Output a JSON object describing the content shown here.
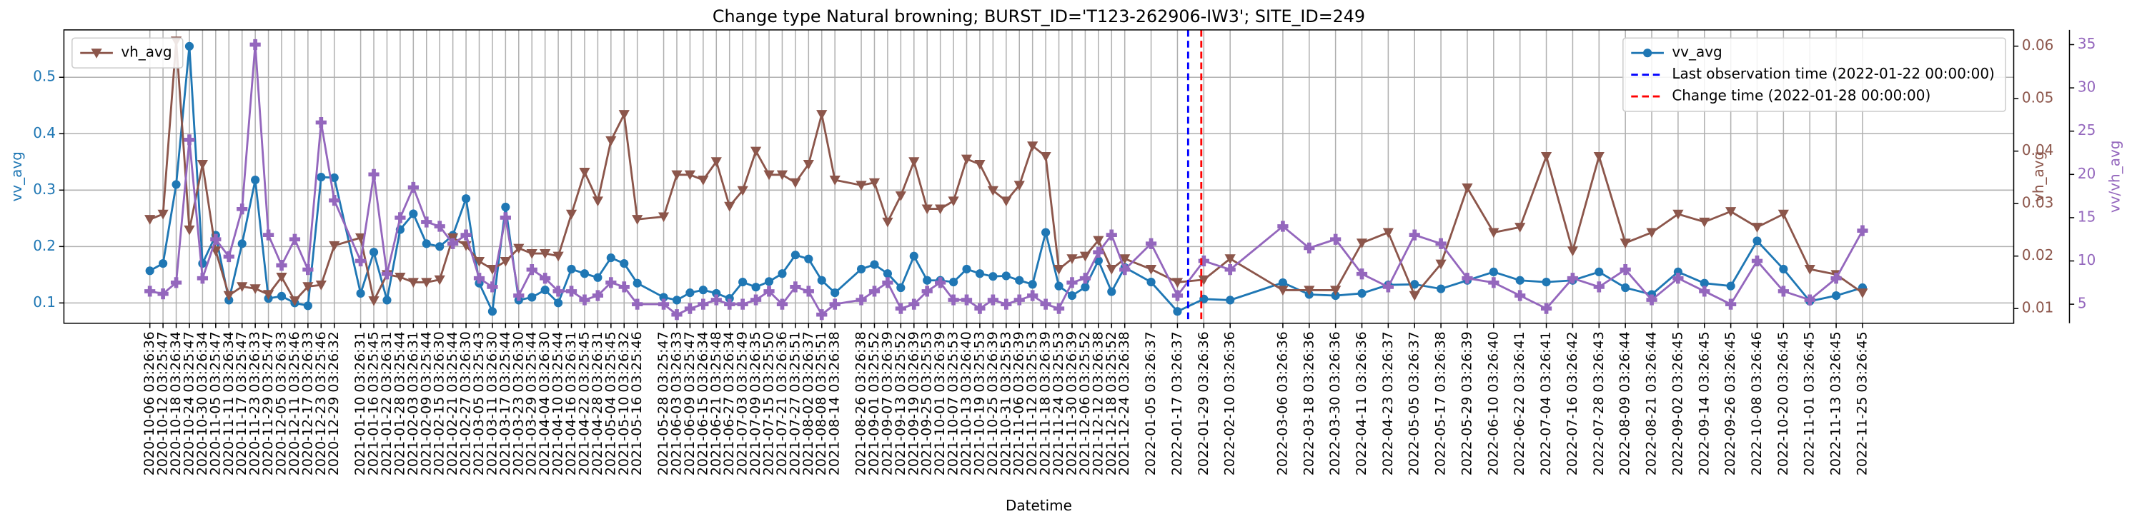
{
  "chart_data": {
    "type": "line",
    "title": "Change type Natural browning; BURST_ID='T123-262906-IW3'; SITE_ID=249",
    "xlabel": "Datetime",
    "ylabel": "vv_avg",
    "y2label": "vh_avg",
    "y3label": "vv/vh_avg",
    "x": [
      "2020-10-06 03:26:36",
      "2020-10-12 03:25:47",
      "2020-10-18 03:26:34",
      "2020-10-24 03:25:47",
      "2020-10-30 03:26:34",
      "2020-11-05 03:25:47",
      "2020-11-11 03:26:34",
      "2020-11-17 03:25:47",
      "2020-11-23 03:26:33",
      "2020-11-29 03:25:47",
      "2020-12-05 03:26:33",
      "2020-12-11 03:25:46",
      "2020-12-17 03:26:33",
      "2020-12-23 03:25:46",
      "2020-12-29 03:26:32",
      "2021-01-10 03:26:31",
      "2021-01-16 03:25:45",
      "2021-01-22 03:26:31",
      "2021-01-28 03:25:44",
      "2021-02-03 03:26:31",
      "2021-02-09 03:25:44",
      "2021-02-15 03:26:30",
      "2021-02-21 03:25:44",
      "2021-02-27 03:26:30",
      "2021-03-05 03:25:43",
      "2021-03-11 03:26:30",
      "2021-03-17 03:25:44",
      "2021-03-23 03:26:30",
      "2021-03-29 03:25:44",
      "2021-04-04 03:26:30",
      "2021-04-10 03:25:44",
      "2021-04-16 03:26:31",
      "2021-04-22 03:25:45",
      "2021-04-28 03:26:31",
      "2021-05-04 03:25:45",
      "2021-05-10 03:26:32",
      "2021-05-16 03:25:46",
      "2021-05-28 03:25:47",
      "2021-06-03 03:26:33",
      "2021-06-09 03:25:47",
      "2021-06-15 03:26:34",
      "2021-06-21 03:25:48",
      "2021-06-27 03:26:34",
      "2021-07-03 03:25:49",
      "2021-07-09 03:26:35",
      "2021-07-15 03:25:50",
      "2021-07-21 03:26:36",
      "2021-07-27 03:25:51",
      "2021-08-02 03:26:37",
      "2021-08-08 03:25:51",
      "2021-08-14 03:26:38",
      "2021-08-26 03:26:38",
      "2021-09-01 03:25:52",
      "2021-09-07 03:26:39",
      "2021-09-13 03:25:52",
      "2021-09-19 03:26:39",
      "2021-09-25 03:25:53",
      "2021-10-01 03:26:39",
      "2021-10-07 03:25:53",
      "2021-10-13 03:26:40",
      "2021-10-19 03:25:53",
      "2021-10-25 03:26:39",
      "2021-10-31 03:25:53",
      "2021-11-06 03:26:39",
      "2021-11-12 03:25:53",
      "2021-11-18 03:26:39",
      "2021-11-24 03:25:53",
      "2021-11-30 03:26:39",
      "2021-12-06 03:25:52",
      "2021-12-12 03:26:38",
      "2021-12-18 03:25:52",
      "2021-12-24 03:26:38",
      "2022-01-05 03:26:37",
      "2022-01-17 03:26:37",
      "2022-01-29 03:26:36",
      "2022-02-10 03:26:36",
      "2022-03-06 03:26:36",
      "2022-03-18 03:26:36",
      "2022-03-30 03:26:36",
      "2022-04-11 03:26:36",
      "2022-04-23 03:26:37",
      "2022-05-05 03:26:37",
      "2022-05-17 03:26:38",
      "2022-05-29 03:26:39",
      "2022-06-10 03:26:40",
      "2022-06-22 03:26:41",
      "2022-07-04 03:26:41",
      "2022-07-16 03:26:42",
      "2022-07-28 03:26:43",
      "2022-08-09 03:26:44",
      "2022-08-21 03:26:44",
      "2022-09-02 03:26:45",
      "2022-09-14 03:26:45",
      "2022-09-26 03:26:45",
      "2022-10-08 03:26:46",
      "2022-10-20 03:26:45",
      "2022-11-01 03:26:45",
      "2022-11-13 03:26:45",
      "2022-11-25 03:26:45"
    ],
    "xlim": [
      "2020-08-28 00:00:00",
      "2023-02-02 00:00:00"
    ],
    "ylim": [
      0.064,
      0.584
    ],
    "yticks": [
      0.1,
      0.2,
      0.3,
      0.4,
      0.5
    ],
    "y2lim": [
      0.0072,
      0.0631
    ],
    "y2ticks": [
      0.01,
      0.02,
      0.03,
      0.04,
      0.05,
      0.06
    ],
    "y3lim": [
      2.8,
      36.7
    ],
    "y3ticks": [
      5,
      10,
      15,
      20,
      25,
      30,
      35
    ],
    "grid": true,
    "series": [
      {
        "name": "vv_avg",
        "color": "#1f77b4",
        "marker": "circle",
        "axis": "y",
        "legend": "upper right",
        "values": [
          0.157,
          0.17,
          0.31,
          0.555,
          0.17,
          0.22,
          0.105,
          0.205,
          0.318,
          0.108,
          0.112,
          0.1,
          0.095,
          0.323,
          0.322,
          0.117,
          0.19,
          0.105,
          0.23,
          0.258,
          0.205,
          0.2,
          0.22,
          0.285,
          0.135,
          0.085,
          0.27,
          0.105,
          0.11,
          0.123,
          0.1,
          0.16,
          0.152,
          0.145,
          0.18,
          0.17,
          0.135,
          0.11,
          0.105,
          0.118,
          0.123,
          0.117,
          0.108,
          0.137,
          0.128,
          0.138,
          0.152,
          0.185,
          0.178,
          0.14,
          0.118,
          0.16,
          0.168,
          0.152,
          0.127,
          0.183,
          0.14,
          0.14,
          0.137,
          0.16,
          0.152,
          0.147,
          0.148,
          0.14,
          0.133,
          0.225,
          0.13,
          0.113,
          0.128,
          0.175,
          0.12,
          0.163,
          0.137,
          0.085,
          0.107,
          0.105,
          0.136,
          0.115,
          0.113,
          0.117,
          0.132,
          0.133,
          0.125,
          0.14,
          0.155,
          0.14,
          0.137,
          0.14,
          0.155,
          0.127,
          0.115,
          0.155,
          0.135,
          0.13,
          0.21,
          0.16,
          0.103,
          0.113,
          0.127
        ]
      },
      {
        "name": "vh_avg",
        "color": "#8c564b",
        "marker": "triangle-down",
        "axis": "y2",
        "legend": "upper left",
        "values": [
          0.027,
          0.028,
          0.061,
          0.025,
          0.0375,
          0.021,
          0.0125,
          0.0142,
          0.0138,
          0.0127,
          0.016,
          0.0115,
          0.0142,
          0.0145,
          0.022,
          0.0235,
          0.0115,
          0.0165,
          0.016,
          0.015,
          0.015,
          0.0155,
          0.0235,
          0.022,
          0.019,
          0.0175,
          0.019,
          0.0215,
          0.0205,
          0.0205,
          0.02,
          0.028,
          0.036,
          0.0305,
          0.042,
          0.047,
          0.027,
          0.0275,
          0.0355,
          0.0355,
          0.0345,
          0.038,
          0.0295,
          0.0325,
          0.04,
          0.0355,
          0.0355,
          0.034,
          0.0375,
          0.047,
          0.0345,
          0.0335,
          0.034,
          0.0265,
          0.0315,
          0.038,
          0.029,
          0.029,
          0.0305,
          0.0385,
          0.0375,
          0.0325,
          0.0305,
          0.0335,
          0.041,
          0.039,
          0.0175,
          0.0195,
          0.02,
          0.023,
          0.0175,
          0.0195,
          0.0175,
          0.015,
          0.0155,
          0.0195,
          0.0135,
          0.0135,
          0.0135,
          0.0225,
          0.0245,
          0.0125,
          0.0185,
          0.033,
          0.0245,
          0.0255,
          0.039,
          0.021,
          0.039,
          0.0225,
          0.0245,
          0.028,
          0.0265,
          0.0285,
          0.0255,
          0.028,
          0.0175,
          0.0165,
          0.013
        ]
      },
      {
        "name": "vv/vh_avg",
        "color": "#9467bd",
        "marker": "plus",
        "axis": "y3",
        "values": [
          6.5,
          6.2,
          7.5,
          24,
          8,
          12.5,
          10.5,
          16,
          35,
          13,
          9.5,
          12.5,
          9,
          26,
          17,
          10,
          20,
          8.5,
          15,
          18.5,
          14.5,
          14,
          12,
          13,
          8,
          7,
          15,
          6,
          9,
          8,
          6.5,
          6.5,
          5.5,
          6,
          7.5,
          7,
          5,
          5,
          3.8,
          4.5,
          5,
          5.5,
          5,
          5,
          5.5,
          6.5,
          5,
          7,
          6.5,
          3.8,
          5,
          5.5,
          6.5,
          7.5,
          4.5,
          5,
          6.5,
          7.5,
          5.5,
          5.5,
          4.5,
          5.5,
          5,
          5.5,
          6,
          5,
          4.5,
          7.5,
          8,
          11,
          13,
          9,
          12,
          6,
          10,
          9,
          14,
          11.5,
          12.5,
          8.5,
          7,
          13,
          12,
          8,
          7.5,
          6,
          4.5,
          8,
          7,
          9,
          5.5,
          8,
          6.5,
          5,
          10,
          6.5,
          5.5,
          8,
          13.5
        ]
      }
    ],
    "vlines": [
      {
        "x": "2022-01-22 00:00:00",
        "label": "Last observation time (2022-01-22 00:00:00)",
        "color": "#0000ff",
        "legend": "upper right"
      },
      {
        "x": "2022-01-28 00:00:00",
        "label": "Change time (2022-01-28 00:00:00)",
        "color": "#ff0000",
        "legend": "upper right"
      }
    ]
  }
}
